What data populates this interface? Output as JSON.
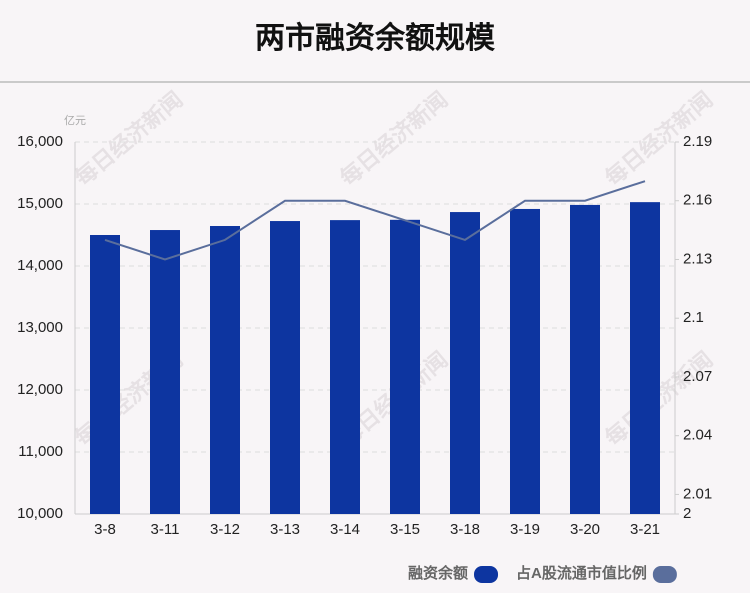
{
  "chart_data": {
    "type": "bar-line",
    "title": "两市融资余额规模",
    "y_unit": "亿元",
    "watermark": "每日经济新闻",
    "categories": [
      "3-8",
      "3-11",
      "3-12",
      "3-13",
      "3-14",
      "3-15",
      "3-18",
      "3-19",
      "3-20",
      "3-21"
    ],
    "series": [
      {
        "name": "融资余额",
        "color": "#0d35a0",
        "type": "bar",
        "values": [
          14500,
          14580,
          14645,
          14725,
          14740,
          14745,
          14870,
          14920,
          14985,
          15030
        ]
      },
      {
        "name": "占A股流通市值比例",
        "color": "#5a6e9c",
        "type": "line",
        "axis": "y2",
        "values": [
          2.14,
          2.13,
          2.14,
          2.16,
          2.16,
          2.15,
          2.14,
          2.16,
          2.16,
          2.17
        ]
      }
    ],
    "ylim": [
      10000,
      16000
    ],
    "yticks": [
      {
        "value": 10000,
        "label": "10,000"
      },
      {
        "value": 11000,
        "label": "11,000"
      },
      {
        "value": 12000,
        "label": "12,000"
      },
      {
        "value": 13000,
        "label": "13,000"
      },
      {
        "value": 14000,
        "label": "14,000"
      },
      {
        "value": 15000,
        "label": "15,000"
      },
      {
        "value": 16000,
        "label": "16,000"
      }
    ],
    "y2lim": [
      2,
      2.19
    ],
    "y2ticks": [
      2,
      2.01,
      2.04,
      2.07,
      2.1,
      2.13,
      2.16,
      2.19
    ],
    "grid": true,
    "legend": "bottom-right"
  }
}
